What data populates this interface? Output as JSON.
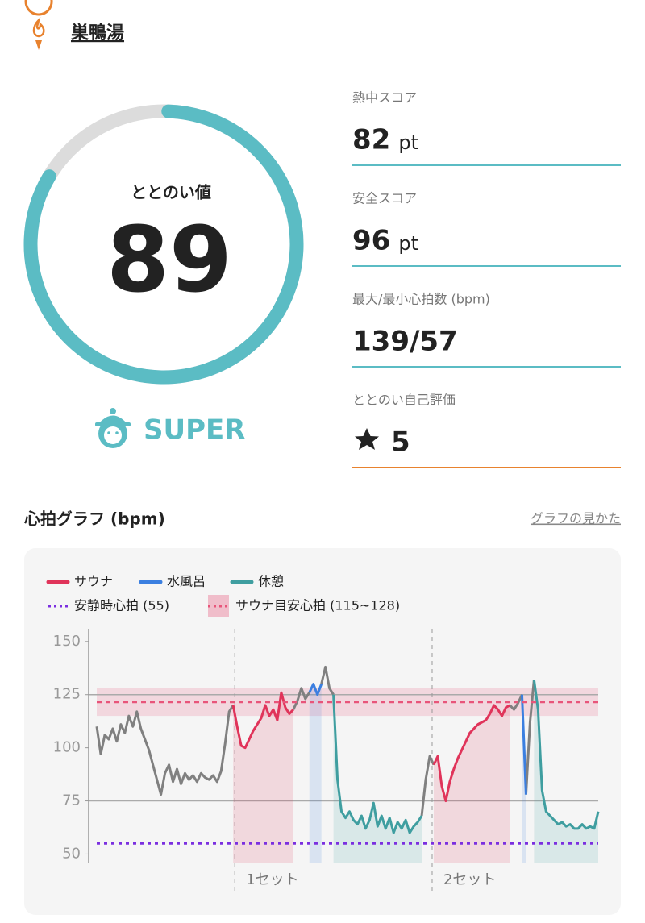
{
  "header": {
    "title": "巣鴨湯"
  },
  "score": {
    "label": "ととのい値",
    "value": 89,
    "rank": "SUPER"
  },
  "stats": [
    {
      "label": "熱中スコア",
      "value": 82,
      "unit": "pt"
    },
    {
      "label": "安全スコア",
      "value": 96,
      "unit": "pt"
    },
    {
      "label": "最大/最小心拍数 (bpm)",
      "value": "139/57"
    },
    {
      "label": "ととのい自己評価",
      "value": 5
    }
  ],
  "help_link": "グラフの見かた",
  "chart_data": {
    "type": "line",
    "title": "心拍グラフ (bpm)",
    "xlim": [
      0,
      125
    ],
    "ylim": [
      46,
      156
    ],
    "yticks": [
      50,
      75,
      100,
      125,
      150
    ],
    "gridlines": [
      75,
      125
    ],
    "sets": [
      {
        "label": "1セット",
        "x": 34.4
      },
      {
        "label": "2セット",
        "x": 83.6
      }
    ],
    "reference_line": {
      "name": "安静時心拍 (55)",
      "value": 55,
      "color": "#7b2fe0"
    },
    "band": {
      "name": "サウナ目安心拍 (115~128)",
      "from": 115,
      "to": 128,
      "color": "#e8557a"
    },
    "series": [
      {
        "color": "#808080",
        "x": [
          0,
          1,
          2,
          3,
          4,
          5,
          6,
          7,
          8,
          9,
          10,
          11,
          12,
          13,
          14,
          15,
          16,
          17,
          18,
          19,
          20,
          21,
          22,
          23,
          24,
          25,
          26,
          27,
          28,
          29,
          30,
          31,
          32,
          33,
          34,
          40,
          49,
          50,
          51,
          52,
          53,
          55,
          56,
          57,
          58,
          59,
          70,
          81,
          82,
          83,
          84,
          95,
          103,
          104,
          105,
          106,
          106.5,
          107,
          108,
          109
        ],
        "values": [
          110,
          97,
          106,
          104,
          109,
          103,
          111,
          107,
          115,
          110,
          117,
          109,
          104,
          99,
          92,
          85,
          78,
          88,
          92,
          84,
          90,
          83,
          88,
          85,
          87,
          84,
          88,
          86,
          85,
          87,
          84,
          89,
          102,
          117,
          120,
          null,
          118,
          122,
          128,
          123,
          126,
          null,
          130,
          138,
          128,
          125,
          null,
          68,
          85,
          96,
          92,
          null,
          120,
          118,
          121,
          125,
          null,
          78,
          112,
          132
        ]
      },
      {
        "name": "サウナ",
        "color": "#e0345a",
        "area": true,
        "x": [
          34,
          35,
          36,
          37,
          38,
          39,
          40,
          41,
          42,
          43,
          44,
          45,
          46,
          47,
          48,
          49,
          66,
          84,
          85,
          86,
          87,
          88,
          89,
          90,
          91,
          92,
          93,
          94,
          95,
          96,
          97,
          98,
          99,
          100,
          101,
          102,
          103
        ],
        "values": [
          120,
          110,
          101,
          100,
          104,
          108,
          111,
          114,
          120,
          115,
          118,
          113,
          126,
          119,
          116,
          118,
          null,
          92,
          96,
          82,
          75,
          84,
          90,
          95,
          99,
          103,
          107,
          109,
          111,
          112,
          113,
          116,
          120,
          118,
          115,
          119,
          120
        ]
      },
      {
        "name": "水風呂",
        "color": "#3b7fe0",
        "area": true,
        "x": [
          53,
          54,
          55,
          56,
          80,
          106,
          107
        ],
        "values": [
          126,
          130,
          125,
          130,
          null,
          125,
          78
        ]
      },
      {
        "name": "休憩",
        "color": "#3f9ea0",
        "area": true,
        "x": [
          59,
          60,
          61,
          62,
          63,
          64,
          65,
          66,
          67,
          68,
          69,
          70,
          71,
          72,
          73,
          74,
          75,
          76,
          77,
          78,
          79,
          80,
          81,
          95,
          109,
          110,
          111,
          112,
          113,
          114,
          115,
          116,
          117,
          118,
          119,
          120,
          121,
          122,
          123,
          124,
          125
        ],
        "values": [
          125,
          85,
          70,
          67,
          70,
          66,
          64,
          68,
          62,
          66,
          74,
          63,
          68,
          62,
          67,
          60,
          65,
          62,
          66,
          60,
          63,
          65,
          68,
          null,
          132,
          118,
          80,
          70,
          68,
          66,
          64,
          65,
          63,
          64,
          62,
          62,
          64,
          62,
          63,
          62,
          70
        ]
      }
    ]
  }
}
